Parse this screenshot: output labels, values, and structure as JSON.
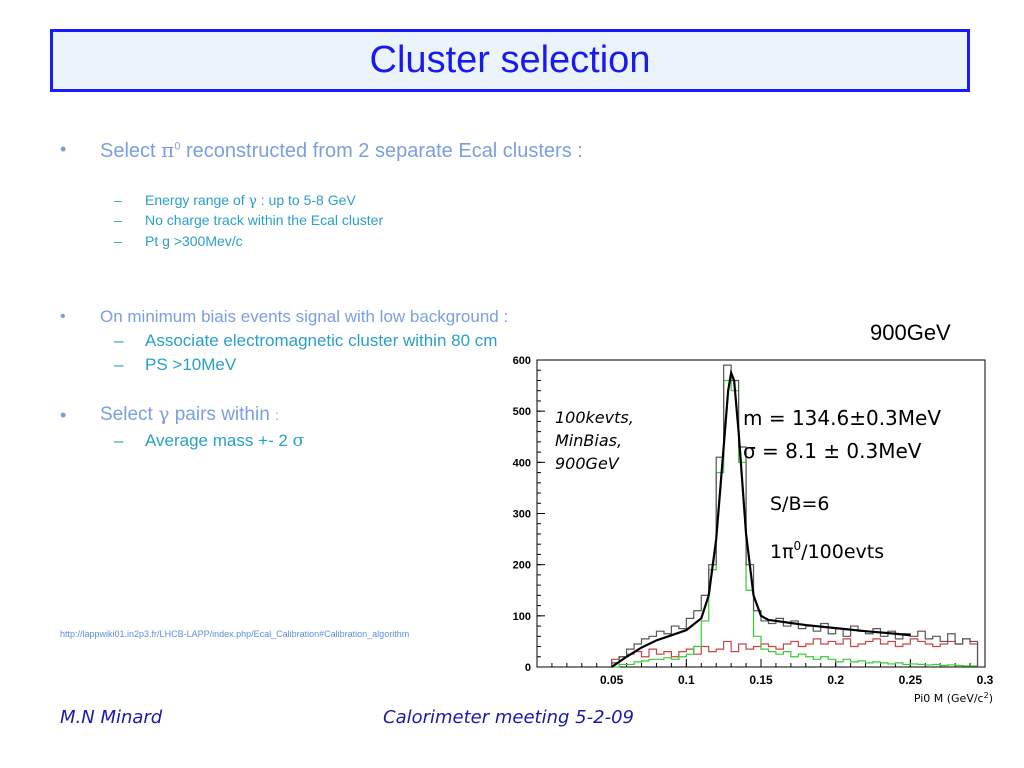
{
  "title": "Cluster selection",
  "bullet_marker": "•",
  "dash_marker": "–",
  "bullets": {
    "b1": {
      "pre": "Select ",
      "sym": "π",
      "sup": "0",
      "post": " reconstructed from 2 separate Ecal clusters :"
    },
    "b1_subs": [
      {
        "pre": "Energy range of ",
        "sym": "γ",
        "post": " :  up to 5-8 GeV"
      },
      {
        "text": "No charge track within the Ecal cluster"
      },
      {
        "text": "Pt g >300Mev/c"
      }
    ],
    "b2": "On minimum biais events signal with low background :",
    "b2_subs": [
      "Associate electromagnetic cluster within 80 cm",
      "PS >10MeV"
    ],
    "b3": {
      "pre": "Select ",
      "sym": "γ",
      "post": " pairs within ",
      "colon": ":"
    },
    "b3_sub": {
      "pre": "Average mass +- 2 ",
      "sym": "σ"
    }
  },
  "link": "http://lappwiki01.in2p3.fr/LHCB-LAPP/index.php/Ecal_Calibration#Calibration_algorithm",
  "energy_label": "900GeV",
  "footer": {
    "author": "M.N Minard",
    "meeting": "Calorimeter meeting 5-2-09"
  },
  "chart_data": {
    "type": "line",
    "xlim": [
      0,
      0.3
    ],
    "ylim": [
      0,
      600
    ],
    "x_ticks": [
      0.05,
      0.1,
      0.15,
      0.2,
      0.25,
      0.3
    ],
    "x_tick_labels": [
      "0.05",
      "0.1",
      "0.15",
      "0.2",
      "0.25",
      "0.3"
    ],
    "y_ticks": [
      0,
      100,
      200,
      300,
      400,
      500,
      600
    ],
    "y_tick_labels": [
      "0",
      "100",
      "200",
      "300",
      "400",
      "500",
      "600"
    ],
    "xlabel": "Pi0 M (GeV/c",
    "xlabel_sup": "2",
    "xlabel_end": ")",
    "annotations": {
      "sample": [
        "100kevts,",
        "MinBias,",
        "900GeV"
      ],
      "mass": "m = 134.6±0.3MeV",
      "sigma": "σ = 8.1 ± 0.3MeV",
      "sb": "S/B=6",
      "rate_pre": "1π",
      "rate_sup": "0",
      "rate_post": "/100evts"
    },
    "colors": {
      "data": "#555555",
      "signal": "#33cc33",
      "background": "#cc4444",
      "fit": "#000000"
    },
    "hist_bin_edges": [
      0.045,
      0.05,
      0.055,
      0.06,
      0.065,
      0.07,
      0.075,
      0.08,
      0.085,
      0.09,
      0.095,
      0.1,
      0.105,
      0.11,
      0.115,
      0.12,
      0.125,
      0.13,
      0.135,
      0.14,
      0.145,
      0.15,
      0.155,
      0.16,
      0.165,
      0.17,
      0.175,
      0.18,
      0.185,
      0.19,
      0.195,
      0.2,
      0.205,
      0.21,
      0.215,
      0.22,
      0.225,
      0.23,
      0.235,
      0.24,
      0.245,
      0.25,
      0.255,
      0.26,
      0.265,
      0.27,
      0.275,
      0.28,
      0.285,
      0.29,
      0.295,
      0.3
    ],
    "series": [
      {
        "values": [
          0,
          8,
          20,
          35,
          45,
          55,
          60,
          70,
          65,
          80,
          75,
          95,
          110,
          140,
          200,
          410,
          590,
          560,
          430,
          200,
          110,
          90,
          85,
          95,
          80,
          90,
          75,
          80,
          70,
          85,
          65,
          75,
          60,
          80,
          70,
          65,
          75,
          60,
          70,
          55,
          65,
          60,
          70,
          55,
          60,
          50,
          65,
          45,
          55,
          50
        ]
      },
      {
        "values": [
          0,
          0,
          5,
          5,
          10,
          12,
          15,
          15,
          18,
          15,
          20,
          25,
          40,
          90,
          190,
          380,
          560,
          540,
          400,
          150,
          60,
          35,
          30,
          25,
          30,
          20,
          25,
          20,
          15,
          20,
          15,
          10,
          15,
          10,
          12,
          8,
          10,
          8,
          6,
          8,
          5,
          6,
          5,
          4,
          5,
          3,
          4,
          3,
          2,
          2
        ]
      },
      {
        "values": [
          0,
          15,
          20,
          25,
          30,
          20,
          35,
          25,
          30,
          20,
          30,
          35,
          25,
          40,
          30,
          35,
          50,
          30,
          45,
          35,
          40,
          45,
          40,
          35,
          45,
          50,
          40,
          45,
          55,
          45,
          50,
          45,
          55,
          40,
          45,
          50,
          55,
          45,
          50,
          40,
          45,
          55,
          50,
          45,
          40,
          45,
          50,
          45,
          55,
          45
        ]
      },
      {
        "x": [
          0.05,
          0.06,
          0.07,
          0.08,
          0.09,
          0.1,
          0.11,
          0.115,
          0.12,
          0.125,
          0.128,
          0.13,
          0.132,
          0.135,
          0.14,
          0.145,
          0.15,
          0.155,
          0.16,
          0.17,
          0.18,
          0.2,
          0.22,
          0.24,
          0.25
        ],
        "y": [
          0,
          20,
          38,
          52,
          62,
          72,
          95,
          140,
          250,
          430,
          540,
          575,
          560,
          460,
          260,
          140,
          100,
          92,
          90,
          86,
          82,
          76,
          70,
          65,
          62
        ]
      }
    ]
  }
}
